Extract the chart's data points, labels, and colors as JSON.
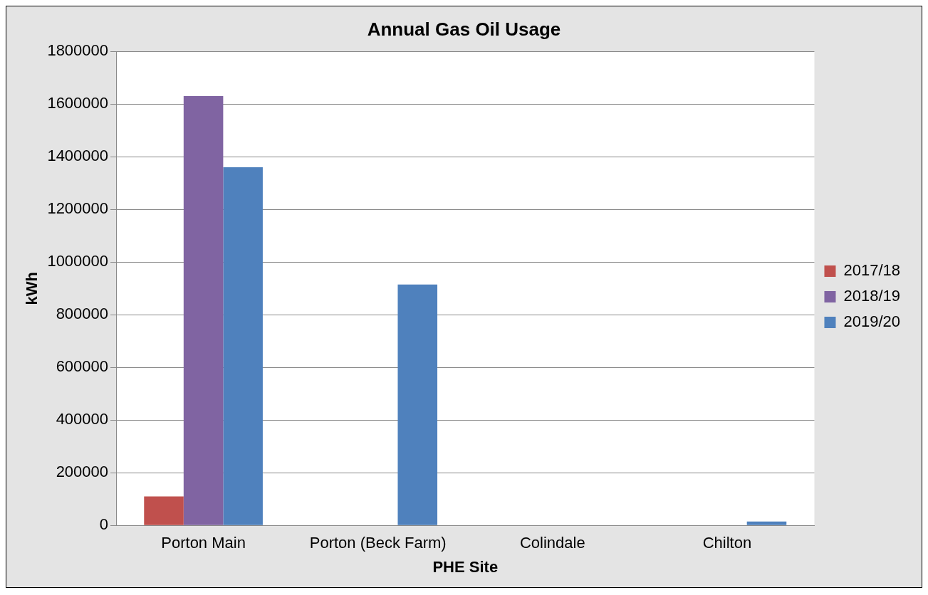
{
  "chart_data": {
    "type": "bar",
    "title": "Annual Gas Oil Usage",
    "xlabel": "PHE Site",
    "ylabel": "kWh",
    "categories": [
      "Porton Main",
      "Porton (Beck Farm)",
      "Colindale",
      "Chilton"
    ],
    "series": [
      {
        "name": "2017/18",
        "color": "#c0504d",
        "values": [
          110000,
          null,
          null,
          null
        ]
      },
      {
        "name": "2018/19",
        "color": "#8064a2",
        "values": [
          1630000,
          null,
          null,
          null
        ]
      },
      {
        "name": "2019/20",
        "color": "#4f81bd",
        "values": [
          1360000,
          915000,
          null,
          15000
        ]
      }
    ],
    "ylim": [
      0,
      1800000
    ],
    "yticks": [
      0,
      200000,
      400000,
      600000,
      800000,
      1000000,
      1200000,
      1400000,
      1600000,
      1800000
    ],
    "grid": "y",
    "legend": "right"
  }
}
